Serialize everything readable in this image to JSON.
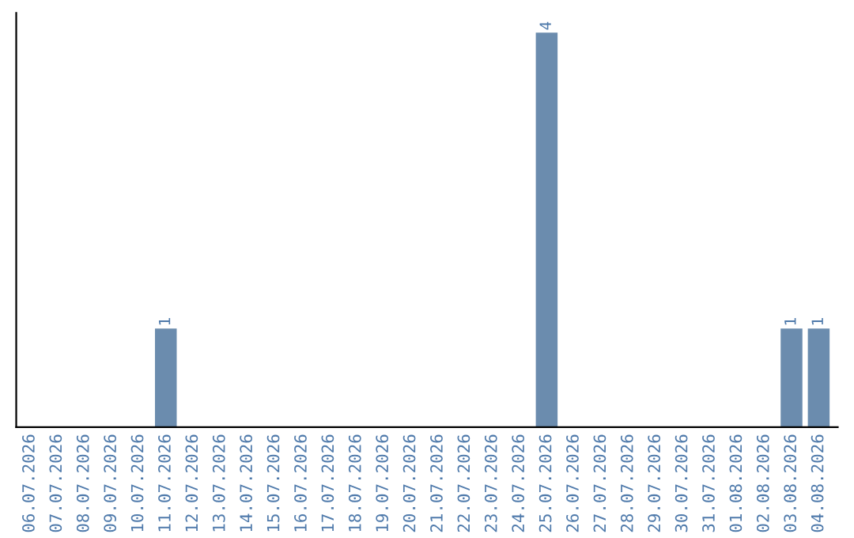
{
  "chart_data": {
    "type": "bar",
    "categories": [
      "06.07.2026",
      "07.07.2026",
      "08.07.2026",
      "09.07.2026",
      "10.07.2026",
      "11.07.2026",
      "12.07.2026",
      "13.07.2026",
      "14.07.2026",
      "15.07.2026",
      "16.07.2026",
      "17.07.2026",
      "18.07.2026",
      "19.07.2026",
      "20.07.2026",
      "21.07.2026",
      "22.07.2026",
      "23.07.2026",
      "24.07.2026",
      "25.07.2026",
      "26.07.2026",
      "27.07.2026",
      "28.07.2026",
      "29.07.2026",
      "30.07.2026",
      "31.07.2026",
      "01.08.2026",
      "02.08.2026",
      "03.08.2026",
      "04.08.2026"
    ],
    "values": [
      0,
      0,
      0,
      0,
      0,
      1,
      0,
      0,
      0,
      0,
      0,
      0,
      0,
      0,
      0,
      0,
      0,
      0,
      0,
      4,
      0,
      0,
      0,
      0,
      0,
      0,
      0,
      0,
      1,
      1
    ],
    "value_labels": [
      null,
      null,
      null,
      null,
      null,
      "1",
      null,
      null,
      null,
      null,
      null,
      null,
      null,
      null,
      null,
      null,
      null,
      null,
      null,
      "4",
      null,
      null,
      null,
      null,
      null,
      null,
      null,
      null,
      "1",
      "1"
    ],
    "color": "#6b8cae",
    "ylim": [
      0,
      4.2
    ],
    "tick_labels": "x",
    "grid": false,
    "legend": false
  }
}
